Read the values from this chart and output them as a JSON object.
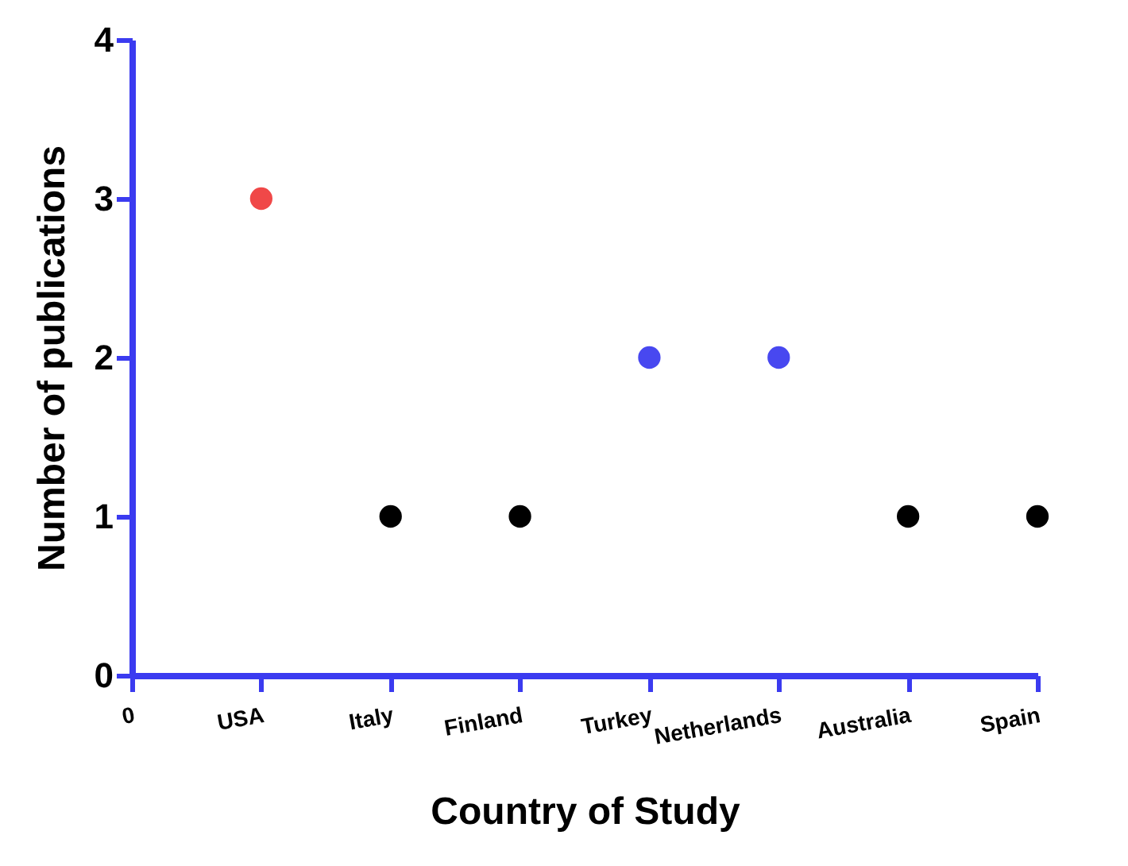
{
  "chart_data": {
    "type": "scatter",
    "xlabel": "Country of Study",
    "ylabel": "Number of publications",
    "categories": [
      "0",
      "USA",
      "Italy",
      "Finland",
      "Turkey",
      "Netherlands",
      "Australia",
      "Spain"
    ],
    "values": [
      null,
      3,
      1,
      1,
      2,
      2,
      1,
      1
    ],
    "colors": [
      null,
      "#f04848",
      "#000000",
      "#000000",
      "#4848f0",
      "#4848f0",
      "#000000",
      "#000000"
    ],
    "ylim": [
      0,
      4
    ],
    "yticks": [
      0,
      1,
      2,
      3,
      4
    ],
    "grid": false,
    "marker": "circle"
  }
}
